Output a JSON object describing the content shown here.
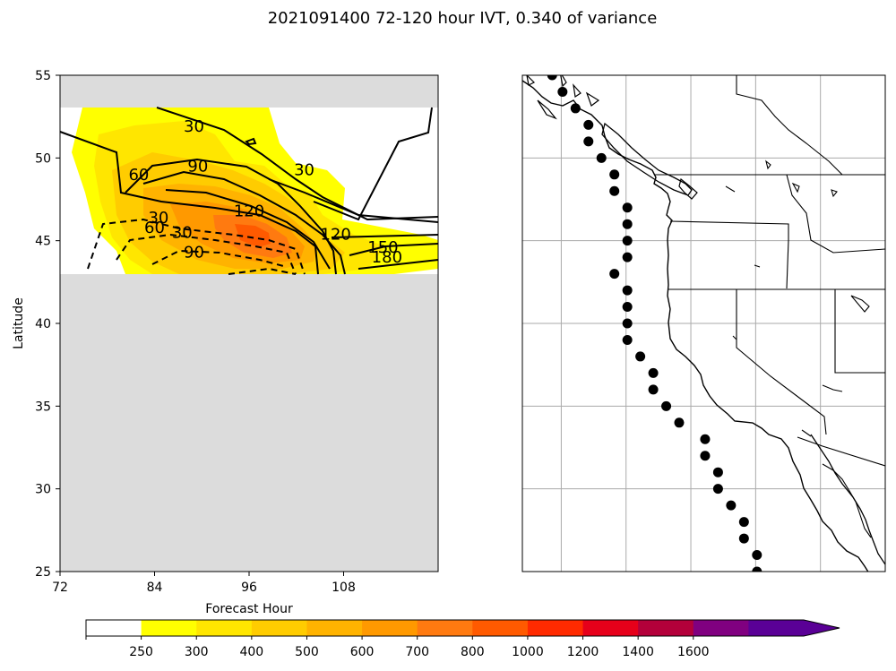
{
  "title": "2021091400 72-120 hour IVT, 0.340 of variance",
  "chart_data": [
    {
      "type": "heatmap",
      "panel": "left",
      "xlabel": "Forecast Hour",
      "ylabel": "Latitude",
      "xlim": [
        72,
        120
      ],
      "ylim": [
        25,
        55
      ],
      "xticks": [
        "72",
        "84",
        "96",
        "108"
      ],
      "xtick_values": [
        72,
        84,
        96,
        108
      ],
      "yticks": [
        "25",
        "30",
        "35",
        "40",
        "45",
        "50",
        "55"
      ],
      "ytick_values": [
        25,
        30,
        35,
        40,
        45,
        50,
        55
      ],
      "valid_lat_range": [
        43,
        53
      ],
      "masked_color": "#dcdcdc",
      "filled_field": "IVT",
      "filled_peak": {
        "hour": 96,
        "lat": 45.5,
        "value_range": "700-800"
      },
      "contour_labels": [
        {
          "text": "30",
          "hour": 89,
          "lat": 51.9,
          "style": "solid"
        },
        {
          "text": "60",
          "hour": 82,
          "lat": 49.0,
          "style": "solid"
        },
        {
          "text": "90",
          "hour": 89.5,
          "lat": 49.5,
          "style": "solid"
        },
        {
          "text": "30",
          "hour": 103,
          "lat": 49.3,
          "style": "solid"
        },
        {
          "text": "120",
          "hour": 96,
          "lat": 46.8,
          "style": "solid"
        },
        {
          "text": "120",
          "hour": 107,
          "lat": 45.4,
          "style": "solid"
        },
        {
          "text": "150",
          "hour": 113,
          "lat": 44.6,
          "style": "solid"
        },
        {
          "text": "180",
          "hour": 113.5,
          "lat": 44.0,
          "style": "solid"
        },
        {
          "text": "30",
          "hour": 84.5,
          "lat": 46.4,
          "style": "dashed"
        },
        {
          "text": "60",
          "hour": 84,
          "lat": 45.8,
          "style": "dashed"
        },
        {
          "text": "30",
          "hour": 87.5,
          "lat": 45.5,
          "style": "dashed"
        },
        {
          "text": "90",
          "hour": 89,
          "lat": 44.3,
          "style": "dashed"
        }
      ]
    },
    {
      "type": "scatter",
      "panel": "right",
      "description_map": "west coast of North America",
      "lon_range": [
        -137,
        -109
      ],
      "lat_range": [
        25,
        55
      ],
      "gridlines": {
        "lon": [
          -134,
          -129,
          -124,
          -119,
          -114
        ],
        "lat": [
          25,
          30,
          35,
          40,
          45,
          50,
          55
        ]
      },
      "points_latlon": [
        [
          55.0,
          -134.7
        ],
        [
          54.0,
          -133.9
        ],
        [
          53.0,
          -132.9
        ],
        [
          52.0,
          -131.9
        ],
        [
          51.0,
          -131.9
        ],
        [
          50.0,
          -130.9
        ],
        [
          49.0,
          -129.9
        ],
        [
          48.0,
          -129.9
        ],
        [
          47.0,
          -128.9
        ],
        [
          46.0,
          -128.9
        ],
        [
          45.0,
          -128.9
        ],
        [
          44.0,
          -128.9
        ],
        [
          43.0,
          -129.9
        ],
        [
          42.0,
          -128.9
        ],
        [
          41.0,
          -128.9
        ],
        [
          40.0,
          -128.9
        ],
        [
          39.0,
          -128.9
        ],
        [
          38.0,
          -127.9
        ],
        [
          37.0,
          -126.9
        ],
        [
          36.0,
          -126.9
        ],
        [
          35.0,
          -125.9
        ],
        [
          34.0,
          -124.9
        ],
        [
          33.0,
          -122.9
        ],
        [
          32.0,
          -122.9
        ],
        [
          31.0,
          -121.9
        ],
        [
          30.0,
          -121.9
        ],
        [
          29.0,
          -120.9
        ],
        [
          28.0,
          -119.9
        ],
        [
          27.0,
          -119.9
        ],
        [
          26.0,
          -118.9
        ],
        [
          25.0,
          -118.9
        ]
      ]
    }
  ],
  "colorbar": {
    "labels": [
      "250",
      "300",
      "400",
      "500",
      "600",
      "700",
      "800",
      "1000",
      "1200",
      "1400",
      "1600"
    ],
    "colors": [
      "#ffffff",
      "#ffff00",
      "#ffe600",
      "#ffcc00",
      "#ffb300",
      "#ff9900",
      "#ff7a10",
      "#ff5a00",
      "#ff2a00",
      "#e6001a",
      "#b3003a",
      "#800080",
      "#5a0096"
    ],
    "extend": "max"
  }
}
